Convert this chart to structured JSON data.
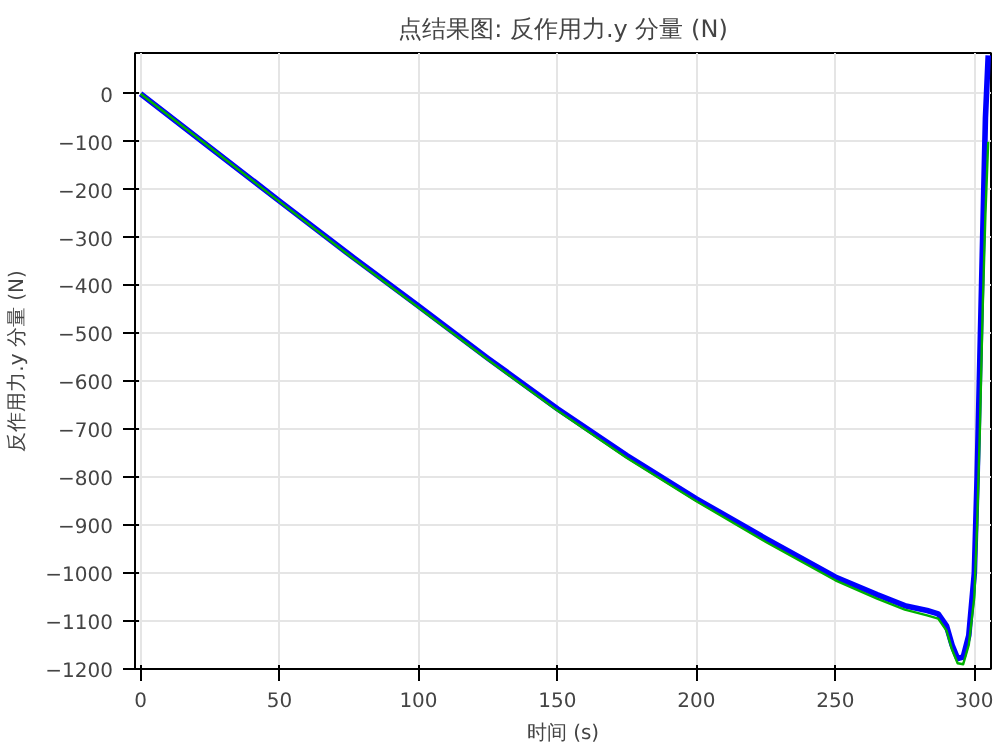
{
  "chart_data": {
    "type": "line",
    "title": "点结果图: 反作用力.y 分量 (N)",
    "xlabel": "时间 (s)",
    "ylabel": "反作用力.y 分量 (N)",
    "xlim": [
      -2,
      306
    ],
    "ylim": [
      -1200,
      85
    ],
    "xticks": [
      0,
      50,
      100,
      150,
      200,
      250,
      300
    ],
    "yticks": [
      -1200,
      -1100,
      -1000,
      -900,
      -800,
      -700,
      -600,
      -500,
      -400,
      -300,
      -200,
      -100,
      0
    ],
    "grid": true,
    "line_style": "solid",
    "series": [
      {
        "color": "#0000ff",
        "x": [
          0,
          25,
          50,
          75,
          100,
          125,
          150,
          175,
          200,
          225,
          250,
          265,
          275,
          283,
          287,
          290,
          292,
          294,
          296,
          298,
          300,
          301,
          302,
          303,
          304,
          305
        ],
        "values": [
          0,
          -112,
          -224,
          -335,
          -443,
          -552,
          -657,
          -755,
          -845,
          -928,
          -1008,
          -1045,
          -1068,
          -1078,
          -1085,
          -1110,
          -1150,
          -1178,
          -1175,
          -1130,
          -1000,
          -800,
          -550,
          -300,
          -50,
          80
        ]
      },
      {
        "color": "#00b000",
        "x": [
          0,
          25,
          50,
          75,
          100,
          125,
          150,
          175,
          200,
          225,
          250,
          265,
          275,
          283,
          287,
          290,
          292,
          294,
          296,
          298,
          300,
          301,
          302,
          303,
          304,
          305
        ],
        "values": [
          0,
          -112,
          -225,
          -337,
          -446,
          -555,
          -661,
          -760,
          -850,
          -935,
          -1015,
          -1053,
          -1076,
          -1088,
          -1095,
          -1120,
          -1160,
          -1188,
          -1190,
          -1150,
          -1050,
          -900,
          -700,
          -450,
          -250,
          -100
        ]
      }
    ]
  }
}
